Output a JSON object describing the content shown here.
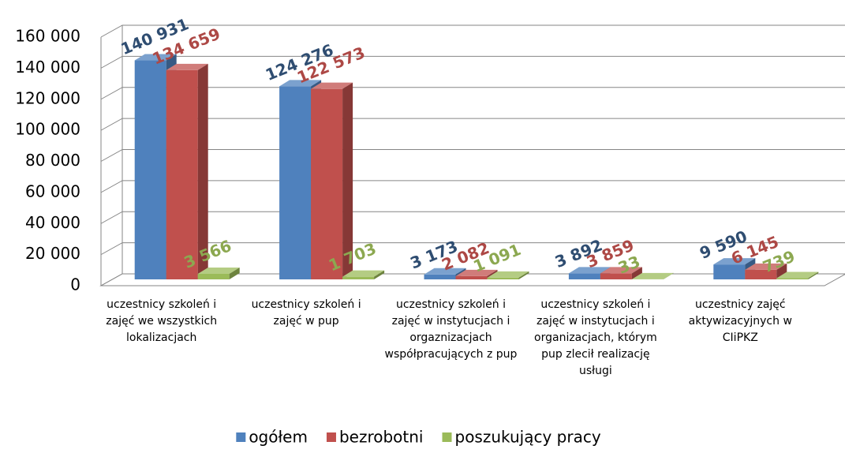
{
  "chart_data": {
    "type": "bar3d",
    "categories": [
      "uczestnicy szkoleń i zajęć we wszystkich lokalizacjach",
      "uczestnicy szkoleń i zajęć w pup",
      "uczestnicy szkoleń i zajęć w instytucjach i orgaznizacjach współpracujących z pup",
      "uczestnicy szkoleń i zajęć w instytucjach i organizacjach, którym pup zlecił realizację usługi",
      "uczestnicy zajęć aktywizacyjnych w CIiPKZ"
    ],
    "series": [
      {
        "name": "ogółem",
        "color": "#4f81bd",
        "values": [
          140931,
          124276,
          3173,
          3892,
          9590
        ],
        "value_labels": [
          "140 931",
          "124 276",
          "3 173",
          "3 892",
          "9 590"
        ]
      },
      {
        "name": "bezrobotni",
        "color": "#c0504d",
        "values": [
          134659,
          122573,
          2082,
          3859,
          6145
        ],
        "value_labels": [
          "134 659",
          "122 573",
          "2 082",
          "3 859",
          "6 145"
        ]
      },
      {
        "name": "poszukujący pracy",
        "color": "#9bbb59",
        "values": [
          3566,
          1703,
          1091,
          33,
          739
        ],
        "value_labels": [
          "3 566",
          "1 703",
          "1 091",
          "33",
          "739"
        ]
      }
    ],
    "ylim": [
      0,
      160000
    ],
    "yticks": [
      0,
      {
        "value": 20000,
        "label": "20 000"
      },
      {
        "value": 40000,
        "label": "40 000"
      },
      {
        "value": 60000,
        "label": "60 000"
      },
      {
        "value": 80000,
        "label": "80 000"
      },
      {
        "value": 100000,
        "label": "100 000"
      },
      {
        "value": 120000,
        "label": "120 000"
      },
      {
        "value": 140000,
        "label": "140 000"
      },
      {
        "value": 160000,
        "label": "160 000"
      }
    ],
    "grid": true,
    "legend": "bottom"
  }
}
